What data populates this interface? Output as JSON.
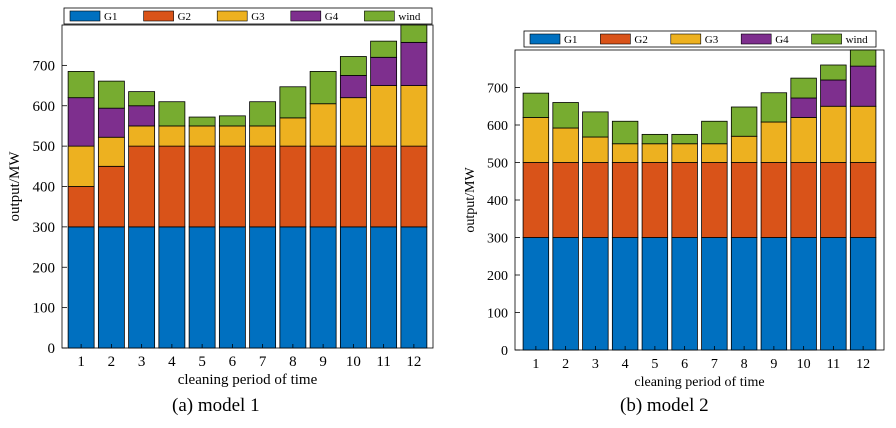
{
  "legend": [
    "G1",
    "G2",
    "G3",
    "G4",
    "wind"
  ],
  "colors": {
    "G1": "#0070c0",
    "G2": "#d95319",
    "G3": "#edb120",
    "G4": "#7e2f8e",
    "wind": "#77ac30"
  },
  "chart_data": [
    {
      "type": "bar",
      "stacked": true,
      "caption": "(a) model 1",
      "xlabel": "cleaning period of time",
      "ylabel": "output/MW",
      "ylim": [
        0,
        800
      ],
      "yticks": [
        0,
        100,
        200,
        300,
        400,
        500,
        600,
        700
      ],
      "categories": [
        "1",
        "2",
        "3",
        "4",
        "5",
        "6",
        "7",
        "8",
        "9",
        "10",
        "11",
        "12"
      ],
      "series": [
        {
          "name": "G1",
          "values": [
            300,
            300,
            300,
            300,
            300,
            300,
            300,
            300,
            300,
            300,
            300,
            300
          ]
        },
        {
          "name": "G2",
          "values": [
            100,
            150,
            200,
            200,
            200,
            200,
            200,
            200,
            200,
            200,
            200,
            200
          ]
        },
        {
          "name": "G3",
          "values": [
            100,
            72,
            50,
            50,
            50,
            50,
            50,
            70,
            105,
            120,
            150,
            150
          ]
        },
        {
          "name": "G4",
          "values": [
            120,
            72,
            50,
            0,
            0,
            0,
            0,
            0,
            0,
            55,
            70,
            107
          ]
        },
        {
          "name": "wind",
          "values": [
            65,
            67,
            35,
            60,
            22,
            25,
            60,
            77,
            80,
            47,
            40,
            43
          ]
        }
      ]
    },
    {
      "type": "bar",
      "stacked": true,
      "caption": "(b) model 2",
      "xlabel": "cleaning period of time",
      "ylabel": "output/MW",
      "ylim": [
        0,
        800
      ],
      "yticks": [
        0,
        100,
        200,
        300,
        400,
        500,
        600,
        700
      ],
      "categories": [
        "1",
        "2",
        "3",
        "4",
        "5",
        "6",
        "7",
        "8",
        "9",
        "10",
        "11",
        "12"
      ],
      "series": [
        {
          "name": "G1",
          "values": [
            300,
            300,
            300,
            300,
            300,
            300,
            300,
            300,
            300,
            300,
            300,
            300
          ]
        },
        {
          "name": "G2",
          "values": [
            200,
            200,
            200,
            200,
            200,
            200,
            200,
            200,
            200,
            200,
            200,
            200
          ]
        },
        {
          "name": "G3",
          "values": [
            120,
            92,
            68,
            50,
            50,
            50,
            50,
            70,
            108,
            120,
            150,
            150
          ]
        },
        {
          "name": "G4",
          "values": [
            0,
            0,
            0,
            0,
            0,
            0,
            0,
            0,
            0,
            52,
            70,
            107
          ]
        },
        {
          "name": "wind",
          "values": [
            65,
            68,
            67,
            60,
            25,
            25,
            60,
            78,
            78,
            53,
            40,
            43
          ]
        }
      ]
    }
  ]
}
